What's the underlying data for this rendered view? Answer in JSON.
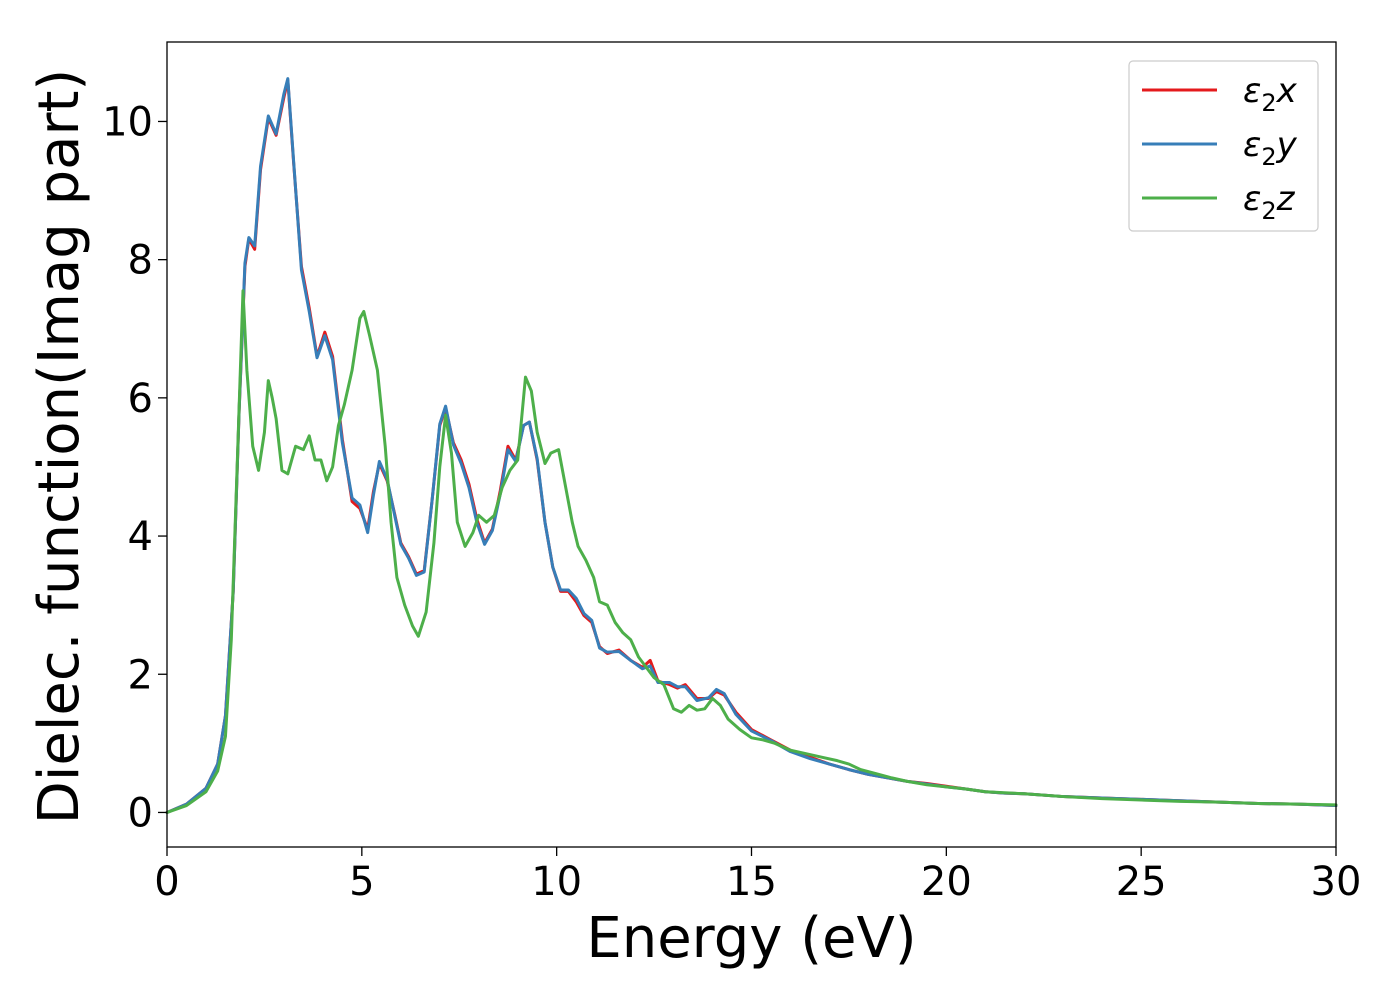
{
  "chart_data": {
    "type": "line",
    "title": "",
    "xlabel": "Energy (eV)",
    "ylabel": "Dielec. function(Imag part)",
    "xlim": [
      0,
      30
    ],
    "ylim": [
      -0.5,
      11.15
    ],
    "xticks": [
      0,
      5,
      10,
      15,
      20,
      25,
      30
    ],
    "yticks": [
      0,
      2,
      4,
      6,
      8,
      10
    ],
    "xtick_labels": [
      "0",
      "5",
      "10",
      "15",
      "20",
      "25",
      "30"
    ],
    "ytick_labels": [
      "0",
      "2",
      "4",
      "6",
      "8",
      "10"
    ],
    "grid": false,
    "legend_position": "top-right",
    "series": [
      {
        "name": "ε₂x",
        "legend_base": "ε",
        "legend_sub": "2",
        "legend_var": "x",
        "color": "#e41a1c",
        "x": [
          0,
          0.5,
          1,
          1.3,
          1.5,
          1.7,
          1.85,
          2,
          2.1,
          2.25,
          2.4,
          2.6,
          2.8,
          3.0,
          3.1,
          3.25,
          3.45,
          3.65,
          3.85,
          4.05,
          4.25,
          4.5,
          4.75,
          4.95,
          5.15,
          5.3,
          5.45,
          5.65,
          5.85,
          6.0,
          6.2,
          6.4,
          6.6,
          6.8,
          7.0,
          7.15,
          7.35,
          7.55,
          7.75,
          7.95,
          8.15,
          8.35,
          8.55,
          8.75,
          8.95,
          9.15,
          9.3,
          9.5,
          9.7,
          9.9,
          10.1,
          10.3,
          10.5,
          10.7,
          10.9,
          11.1,
          11.3,
          11.6,
          11.9,
          12.2,
          12.4,
          12.6,
          12.9,
          13.1,
          13.3,
          13.6,
          13.9,
          14.1,
          14.3,
          14.6,
          15.0,
          15.5,
          16.0,
          16.5,
          17.0,
          17.5,
          18.0,
          18.5,
          19.0,
          19.5,
          20.0,
          20.5,
          21.0,
          21.5,
          22.0,
          23.0,
          24.0,
          25.0,
          26.0,
          27.0,
          28.0,
          29.0,
          30.0
        ],
        "y": [
          0.0,
          0.12,
          0.35,
          0.7,
          1.4,
          3.2,
          5.8,
          7.9,
          8.3,
          8.15,
          9.3,
          10.05,
          9.8,
          10.35,
          10.6,
          9.4,
          7.9,
          7.3,
          6.6,
          6.95,
          6.6,
          5.4,
          4.5,
          4.4,
          4.1,
          4.65,
          5.05,
          4.8,
          4.3,
          3.9,
          3.7,
          3.45,
          3.5,
          4.5,
          5.6,
          5.85,
          5.35,
          5.1,
          4.75,
          4.25,
          3.9,
          4.1,
          4.65,
          5.3,
          5.1,
          5.6,
          5.65,
          5.1,
          4.2,
          3.55,
          3.2,
          3.2,
          3.05,
          2.85,
          2.75,
          2.4,
          2.3,
          2.35,
          2.2,
          2.1,
          2.2,
          1.9,
          1.85,
          1.8,
          1.85,
          1.65,
          1.65,
          1.75,
          1.7,
          1.45,
          1.2,
          1.05,
          0.9,
          0.8,
          0.7,
          0.62,
          0.55,
          0.5,
          0.45,
          0.42,
          0.38,
          0.34,
          0.3,
          0.28,
          0.27,
          0.23,
          0.21,
          0.19,
          0.17,
          0.15,
          0.13,
          0.12,
          0.1
        ]
      },
      {
        "name": "ε₂y",
        "legend_base": "ε",
        "legend_sub": "2",
        "legend_var": "y",
        "color": "#377eb8",
        "x": [
          0,
          0.5,
          1,
          1.3,
          1.5,
          1.7,
          1.85,
          2,
          2.1,
          2.25,
          2.4,
          2.6,
          2.8,
          3.0,
          3.1,
          3.25,
          3.45,
          3.65,
          3.85,
          4.05,
          4.25,
          4.5,
          4.75,
          4.95,
          5.15,
          5.3,
          5.45,
          5.65,
          5.85,
          6.0,
          6.2,
          6.4,
          6.6,
          6.8,
          7.0,
          7.15,
          7.35,
          7.55,
          7.75,
          7.95,
          8.15,
          8.35,
          8.55,
          8.75,
          8.95,
          9.15,
          9.3,
          9.5,
          9.7,
          9.9,
          10.1,
          10.3,
          10.5,
          10.7,
          10.9,
          11.1,
          11.3,
          11.6,
          11.9,
          12.2,
          12.4,
          12.6,
          12.9,
          13.1,
          13.3,
          13.6,
          13.9,
          14.1,
          14.3,
          14.6,
          15.0,
          15.5,
          16.0,
          16.5,
          17.0,
          17.5,
          18.0,
          18.5,
          19.0,
          19.5,
          20.0,
          20.5,
          21.0,
          21.5,
          22.0,
          23.0,
          24.0,
          25.0,
          26.0,
          27.0,
          28.0,
          29.0,
          30.0
        ],
        "y": [
          0.0,
          0.12,
          0.35,
          0.7,
          1.4,
          3.2,
          5.8,
          7.95,
          8.32,
          8.2,
          9.35,
          10.08,
          9.82,
          10.4,
          10.62,
          9.42,
          7.85,
          7.25,
          6.58,
          6.9,
          6.55,
          5.35,
          4.55,
          4.45,
          4.05,
          4.6,
          5.08,
          4.82,
          4.28,
          3.88,
          3.68,
          3.43,
          3.48,
          4.5,
          5.62,
          5.88,
          5.32,
          5.05,
          4.7,
          4.2,
          3.88,
          4.08,
          4.6,
          5.25,
          5.08,
          5.6,
          5.65,
          5.12,
          4.2,
          3.55,
          3.22,
          3.22,
          3.1,
          2.88,
          2.78,
          2.38,
          2.32,
          2.33,
          2.2,
          2.08,
          2.12,
          1.88,
          1.88,
          1.82,
          1.82,
          1.62,
          1.66,
          1.78,
          1.72,
          1.42,
          1.18,
          1.04,
          0.88,
          0.78,
          0.7,
          0.62,
          0.55,
          0.5,
          0.45,
          0.41,
          0.37,
          0.34,
          0.3,
          0.28,
          0.27,
          0.23,
          0.21,
          0.19,
          0.17,
          0.15,
          0.13,
          0.12,
          0.1
        ]
      },
      {
        "name": "ε₂z",
        "legend_base": "ε",
        "legend_sub": "2",
        "legend_var": "z",
        "color": "#4daf4a",
        "x": [
          0,
          0.5,
          1,
          1.3,
          1.5,
          1.65,
          1.8,
          1.95,
          2.05,
          2.2,
          2.35,
          2.5,
          2.6,
          2.7,
          2.8,
          2.95,
          3.1,
          3.3,
          3.5,
          3.65,
          3.8,
          3.95,
          4.1,
          4.25,
          4.4,
          4.55,
          4.75,
          4.95,
          5.05,
          5.2,
          5.4,
          5.6,
          5.75,
          5.9,
          6.1,
          6.3,
          6.45,
          6.65,
          6.85,
          7.0,
          7.15,
          7.3,
          7.45,
          7.65,
          7.85,
          8.0,
          8.2,
          8.4,
          8.6,
          8.8,
          9.0,
          9.1,
          9.2,
          9.35,
          9.5,
          9.7,
          9.85,
          10.05,
          10.2,
          10.4,
          10.55,
          10.75,
          10.95,
          11.1,
          11.3,
          11.5,
          11.7,
          11.9,
          12.1,
          12.3,
          12.5,
          12.75,
          13.0,
          13.2,
          13.4,
          13.6,
          13.8,
          14.0,
          14.2,
          14.4,
          14.7,
          15.0,
          15.3,
          15.6,
          16.0,
          16.4,
          16.8,
          17.2,
          17.5,
          17.8,
          18.2,
          18.6,
          19.0,
          19.5,
          20.0,
          20.5,
          21.0,
          22.0,
          23.0,
          24.0,
          25.0,
          26.0,
          27.0,
          28.0,
          29.0,
          30.0
        ],
        "y": [
          0.0,
          0.1,
          0.3,
          0.6,
          1.1,
          2.5,
          5.0,
          7.55,
          6.4,
          5.3,
          4.95,
          5.5,
          6.25,
          6.0,
          5.7,
          4.95,
          4.9,
          5.3,
          5.25,
          5.45,
          5.1,
          5.1,
          4.8,
          5.0,
          5.6,
          5.9,
          6.4,
          7.15,
          7.25,
          6.9,
          6.4,
          5.3,
          4.2,
          3.4,
          3.0,
          2.7,
          2.55,
          2.9,
          3.9,
          5.0,
          5.75,
          5.2,
          4.2,
          3.85,
          4.05,
          4.3,
          4.2,
          4.3,
          4.7,
          4.95,
          5.1,
          5.7,
          6.3,
          6.1,
          5.5,
          5.05,
          5.2,
          5.25,
          4.8,
          4.2,
          3.85,
          3.65,
          3.4,
          3.05,
          3.0,
          2.75,
          2.6,
          2.5,
          2.25,
          2.1,
          1.95,
          1.85,
          1.5,
          1.45,
          1.55,
          1.48,
          1.5,
          1.65,
          1.55,
          1.35,
          1.2,
          1.08,
          1.05,
          1.0,
          0.9,
          0.85,
          0.8,
          0.75,
          0.7,
          0.62,
          0.56,
          0.5,
          0.45,
          0.4,
          0.37,
          0.34,
          0.3,
          0.27,
          0.23,
          0.2,
          0.18,
          0.16,
          0.15,
          0.13,
          0.12,
          0.11
        ]
      }
    ]
  }
}
